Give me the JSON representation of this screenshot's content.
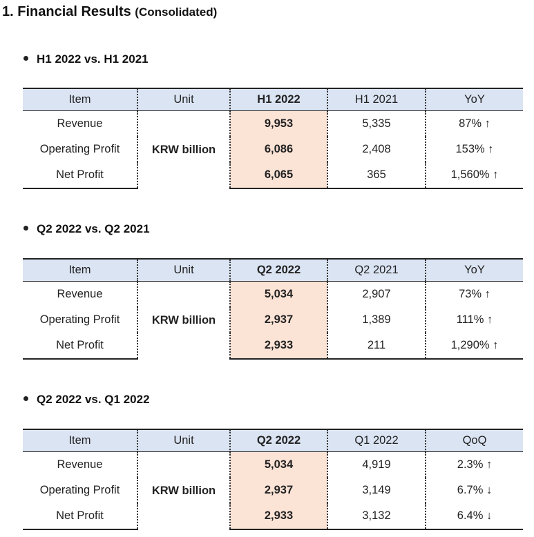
{
  "heading": {
    "main": "1. Financial Results ",
    "sub": "(Consolidated)"
  },
  "sections": [
    {
      "title": "H1 2022 vs. H1 2021",
      "headers": [
        "Item",
        "Unit",
        "H1 2022",
        "H1 2021",
        "YoY"
      ],
      "unit": "KRW billion",
      "rows": [
        {
          "item": "Revenue",
          "cur": "9,953",
          "prev": "5,335",
          "chg": "87% ↑"
        },
        {
          "item": "Operating Profit",
          "cur": "6,086",
          "prev": "2,408",
          "chg": "153% ↑"
        },
        {
          "item": "Net Profit",
          "cur": "6,065",
          "prev": "365",
          "chg": "1,560% ↑"
        }
      ]
    },
    {
      "title": "Q2 2022 vs. Q2 2021",
      "headers": [
        "Item",
        "Unit",
        "Q2 2022",
        "Q2 2021",
        "YoY"
      ],
      "unit": "KRW billion",
      "rows": [
        {
          "item": "Revenue",
          "cur": "5,034",
          "prev": "2,907",
          "chg": "73% ↑"
        },
        {
          "item": "Operating Profit",
          "cur": "2,937",
          "prev": "1,389",
          "chg": "111% ↑"
        },
        {
          "item": "Net Profit",
          "cur": "2,933",
          "prev": "211",
          "chg": "1,290% ↑"
        }
      ]
    },
    {
      "title": "Q2 2022 vs. Q1 2022",
      "headers": [
        "Item",
        "Unit",
        "Q2 2022",
        "Q1 2022",
        "QoQ"
      ],
      "unit": "KRW billion",
      "rows": [
        {
          "item": "Revenue",
          "cur": "5,034",
          "prev": "4,919",
          "chg": "2.3% ↑"
        },
        {
          "item": "Operating Profit",
          "cur": "2,937",
          "prev": "3,149",
          "chg": "6.7% ↓"
        },
        {
          "item": "Net Profit",
          "cur": "2,933",
          "prev": "3,132",
          "chg": "6.4% ↓"
        }
      ]
    }
  ],
  "colors": {
    "header_bg": "#dbe4f3",
    "highlight_bg": "#fbe3d6"
  }
}
